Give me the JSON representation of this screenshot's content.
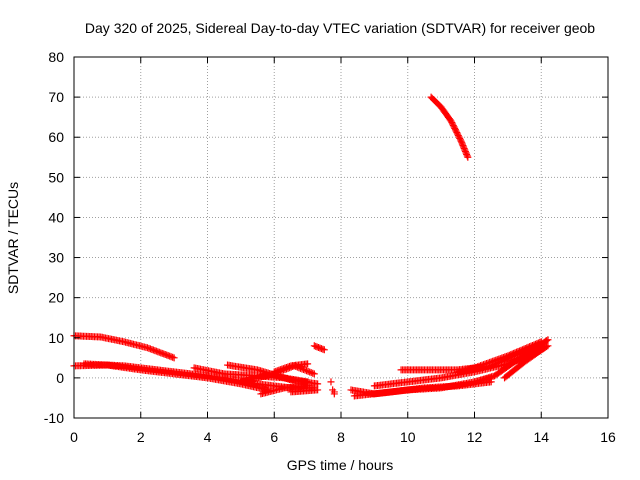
{
  "chart_data": {
    "type": "scatter",
    "title": "Day 320 of 2025, Sidereal Day-to-day VTEC variation (SDTVAR) for receiver geob",
    "xlabel": "GPS time / hours",
    "ylabel": "SDTVAR / TECUs",
    "xlim": [
      0,
      16
    ],
    "ylim": [
      -10,
      80
    ],
    "xticks": [
      "0",
      "2",
      "4",
      "6",
      "8",
      "10",
      "12",
      "14",
      "16"
    ],
    "yticks": [
      "-10",
      "0",
      "10",
      "20",
      "30",
      "40",
      "50",
      "60",
      "70",
      "80"
    ],
    "grid": true,
    "marker": "+",
    "color": "#ff0000",
    "series": [
      {
        "tracks": [
          [
            [
              0.0,
              10.5
            ],
            [
              0.8,
              10.2
            ],
            [
              1.5,
              9.0
            ],
            [
              2.2,
              7.5
            ],
            [
              3.0,
              5.0
            ]
          ],
          [
            [
              0.0,
              3.0
            ],
            [
              1.0,
              3.2
            ],
            [
              2.0,
              2.0
            ],
            [
              3.0,
              1.0
            ],
            [
              4.0,
              0.0
            ],
            [
              5.0,
              -1.5
            ],
            [
              5.8,
              -3.0
            ]
          ],
          [
            [
              0.3,
              3.5
            ],
            [
              1.5,
              3.0
            ],
            [
              2.5,
              2.0
            ],
            [
              3.5,
              1.0
            ],
            [
              4.5,
              0.0
            ],
            [
              5.5,
              -1.5
            ],
            [
              6.5,
              -2.5
            ],
            [
              7.2,
              -2.5
            ]
          ],
          [
            [
              3.6,
              2.5
            ],
            [
              4.5,
              1.0
            ],
            [
              5.5,
              0.5
            ],
            [
              6.3,
              0.0
            ],
            [
              7.0,
              -1.0
            ]
          ],
          [
            [
              4.6,
              3.2
            ],
            [
              5.5,
              2.0
            ],
            [
              6.5,
              -0.5
            ],
            [
              7.3,
              -1.5
            ]
          ],
          [
            [
              5.0,
              -1.0
            ],
            [
              6.0,
              1.0
            ],
            [
              6.6,
              3.0
            ],
            [
              7.2,
              1.0
            ]
          ],
          [
            [
              5.6,
              -4.0
            ],
            [
              6.3,
              -2.5
            ],
            [
              7.0,
              -2.0
            ]
          ],
          [
            [
              6.0,
              1.5
            ],
            [
              6.5,
              3.0
            ],
            [
              7.0,
              3.5
            ]
          ],
          [
            [
              6.5,
              -3.5
            ],
            [
              7.3,
              -3.0
            ]
          ],
          [
            [
              7.2,
              8.0
            ],
            [
              7.5,
              7.0
            ]
          ],
          [
            [
              8.3,
              -3.0
            ],
            [
              9.0,
              -4.0
            ],
            [
              10.0,
              -3.0
            ],
            [
              11.0,
              -2.5
            ],
            [
              12.0,
              -1.0
            ],
            [
              12.5,
              0.0
            ]
          ],
          [
            [
              8.4,
              -4.5
            ],
            [
              9.5,
              -3.5
            ],
            [
              10.5,
              -2.5
            ],
            [
              11.5,
              -2.0
            ],
            [
              12.5,
              -1.0
            ]
          ],
          [
            [
              9.0,
              -2.0
            ],
            [
              10.0,
              -1.0
            ],
            [
              11.0,
              0.0
            ],
            [
              12.0,
              1.5
            ],
            [
              13.0,
              3.5
            ],
            [
              13.8,
              6.0
            ],
            [
              14.2,
              8.0
            ]
          ],
          [
            [
              9.8,
              2.0
            ],
            [
              10.5,
              2.0
            ],
            [
              11.5,
              2.0
            ],
            [
              12.5,
              3.0
            ],
            [
              13.2,
              5.5
            ],
            [
              14.0,
              8.5
            ]
          ],
          [
            [
              11.5,
              1.5
            ],
            [
              12.0,
              2.5
            ],
            [
              13.0,
              5.5
            ],
            [
              14.0,
              9.0
            ]
          ],
          [
            [
              12.0,
              -1.0
            ],
            [
              12.6,
              0.5
            ],
            [
              13.2,
              4.0
            ],
            [
              14.0,
              8.0
            ]
          ],
          [
            [
              12.9,
              0.0
            ],
            [
              13.5,
              4.0
            ],
            [
              14.1,
              7.5
            ]
          ],
          [
            [
              13.3,
              4.5
            ],
            [
              14.2,
              9.5
            ]
          ],
          [
            [
              10.7,
              70.0
            ],
            [
              11.0,
              67.5
            ],
            [
              11.3,
              64.0
            ],
            [
              11.6,
              59.0
            ],
            [
              11.8,
              55.0
            ]
          ]
        ]
      }
    ],
    "isolated_points": [
      [
        7.7,
        -1.0
      ],
      [
        7.75,
        -3.0
      ],
      [
        7.8,
        -4.0
      ],
      [
        7.8,
        -3.5
      ]
    ]
  }
}
